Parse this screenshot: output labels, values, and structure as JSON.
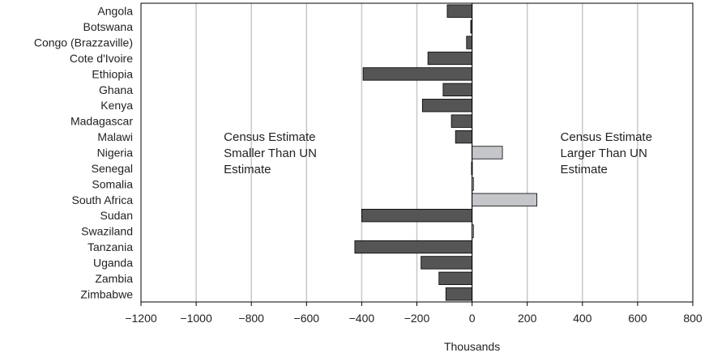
{
  "chart_data": {
    "type": "bar",
    "orientation": "horizontal",
    "categories": [
      "Angola",
      "Botswana",
      "Congo (Brazzaville)",
      "Cote d'Ivoire",
      "Ethiopia",
      "Ghana",
      "Kenya",
      "Madagascar",
      "Malawi",
      "Nigeria",
      "Senegal",
      "Somalia",
      "South Africa",
      "Sudan",
      "Swaziland",
      "Tanzania",
      "Uganda",
      "Zambia",
      "Zimbabwe"
    ],
    "values": [
      -90,
      -5,
      -20,
      -160,
      -395,
      -105,
      -180,
      -75,
      -60,
      110,
      -2,
      5,
      235,
      -400,
      5,
      -425,
      -185,
      -120,
      -95
    ],
    "xlabel": "Thousands",
    "ylabel": "",
    "title": "",
    "xlim": [
      -1200,
      800
    ],
    "xticks": [
      -1200,
      -1000,
      -800,
      -600,
      -400,
      -200,
      0,
      200,
      400,
      600,
      800
    ],
    "xtick_labels": [
      "−1200",
      "−1000",
      "−800",
      "−600",
      "−400",
      "−200",
      "0",
      "200",
      "400",
      "600",
      "800"
    ],
    "grid": "vertical",
    "colors": {
      "negative": "#555555",
      "positive": "#c4c6ca",
      "stroke": "#000000",
      "grid": "#c8c8c8"
    },
    "annotations": [
      {
        "lines": [
          "Census Estimate",
          "Smaller Than UN",
          "Estimate"
        ],
        "anchor_x": -900,
        "anchor_row": 9
      },
      {
        "lines": [
          "Census Estimate",
          "Larger Than UN",
          "Estimate"
        ],
        "anchor_x": 320,
        "anchor_row": 9
      }
    ]
  }
}
